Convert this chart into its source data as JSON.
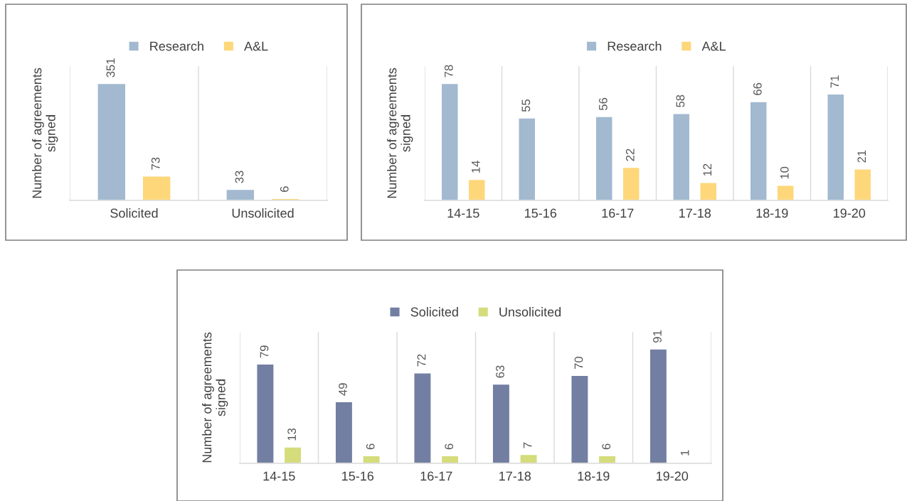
{
  "chart_data": [
    {
      "type": "bar",
      "ylabel": "Number of agreements signed",
      "categories": [
        "Solicited",
        "Unsolicited"
      ],
      "legend": "top",
      "grid": "x",
      "data_labels": true,
      "tick_labels": "x",
      "series": [
        {
          "name": "Research",
          "color": "#a2b9d0",
          "values": [
            351,
            33
          ]
        },
        {
          "name": "A&L",
          "color": "#fdd77a",
          "values": [
            73,
            6
          ]
        }
      ]
    },
    {
      "type": "bar",
      "ylabel": "Number of agreements signed",
      "categories": [
        "14-15",
        "15-16",
        "16-17",
        "17-18",
        "18-19",
        "19-20"
      ],
      "legend": "top",
      "grid": "x",
      "data_labels": true,
      "tick_labels": "x",
      "series": [
        {
          "name": "Research",
          "color": "#a2b9d0",
          "values": [
            78,
            55,
            56,
            58,
            66,
            71
          ]
        },
        {
          "name": "A&L",
          "color": "#fdd77a",
          "values": [
            14,
            null,
            22,
            12,
            10,
            21
          ]
        }
      ]
    },
    {
      "type": "bar",
      "ylabel": "Number of agreements signed",
      "categories": [
        "14-15",
        "15-16",
        "16-17",
        "17-18",
        "18-19",
        "19-20"
      ],
      "legend": "top",
      "grid": "x",
      "data_labels": true,
      "tick_labels": "x",
      "series": [
        {
          "name": "Solicited",
          "color": "#727fa2",
          "values": [
            79,
            49,
            72,
            63,
            70,
            91
          ]
        },
        {
          "name": "Unsolicited",
          "color": "#d4dc7c",
          "values": [
            13,
            6,
            6,
            7,
            6,
            1
          ]
        }
      ]
    }
  ]
}
